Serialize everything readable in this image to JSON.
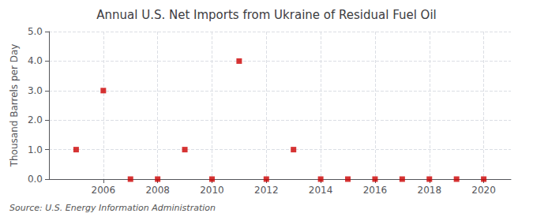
{
  "chart_data": {
    "type": "scatter",
    "title": "Annual U.S. Net Imports from Ukraine of Residual Fuel Oil",
    "ylabel": "Thousand Barrels per Day",
    "annotations": [
      "Source: U.S. Energy Information Administration"
    ],
    "x": [
      2005,
      2006,
      2007,
      2008,
      2009,
      2010,
      2011,
      2012,
      2013,
      2014,
      2015,
      2016,
      2017,
      2018,
      2019,
      2020
    ],
    "values": [
      1.0,
      3.0,
      0.0,
      0.0,
      1.0,
      0.0,
      4.0,
      0.0,
      1.0,
      0.0,
      0.0,
      0.0,
      0.0,
      0.0,
      0.0,
      0.0
    ],
    "color": "#cc0000",
    "marker": "square",
    "xlim": [
      2004,
      2021
    ],
    "xticks": [
      2006,
      2008,
      2010,
      2012,
      2014,
      2016,
      2018,
      2020
    ],
    "ylim": [
      0.0,
      5.0
    ],
    "yticks": [
      {
        "value": 0,
        "label": "0.0"
      },
      {
        "value": 1,
        "label": "1.0"
      },
      {
        "value": 2,
        "label": "2.0"
      },
      {
        "value": 3,
        "label": "3.0"
      },
      {
        "value": 4,
        "label": "4.0"
      },
      {
        "value": 5,
        "label": "5.0"
      }
    ],
    "grid": true
  }
}
